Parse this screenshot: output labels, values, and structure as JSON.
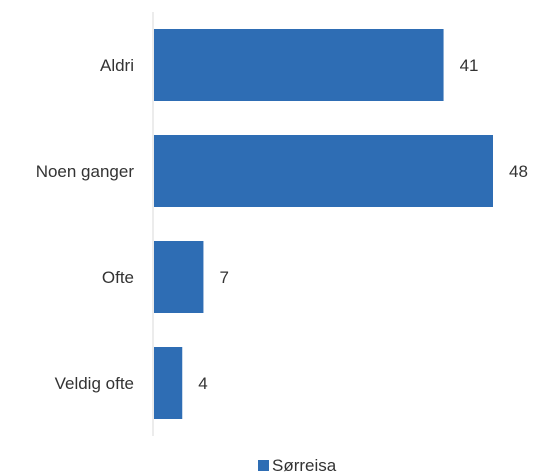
{
  "chart_data": {
    "type": "bar",
    "orientation": "horizontal",
    "categories": [
      "Aldri",
      "Noen ganger",
      "Ofte",
      "Veldig ofte"
    ],
    "series": [
      {
        "name": "Sørreisa",
        "values": [
          41,
          48,
          7,
          4
        ],
        "color": "#2e6db4"
      }
    ],
    "xlim": [
      0,
      48
    ],
    "grid": false,
    "legend": "bottom-center"
  }
}
